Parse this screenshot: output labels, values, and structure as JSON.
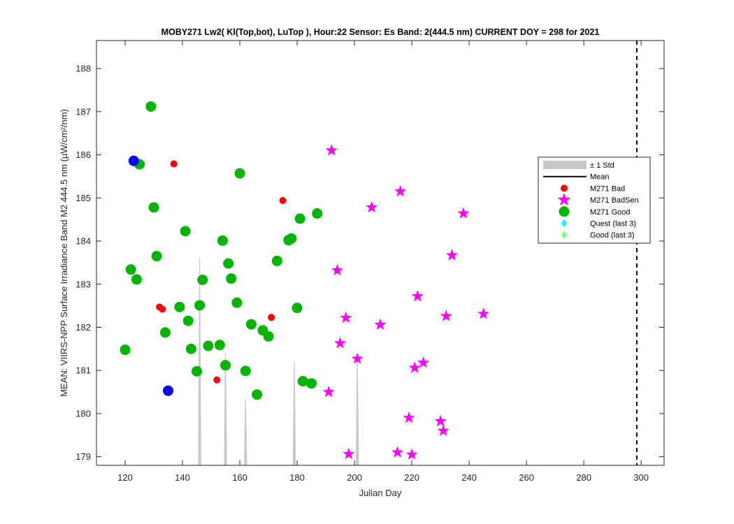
{
  "chart_data": {
    "type": "scatter",
    "title": "MOBY271   Lw2( Kl(Top,bot), LuTop ),   Hour:22 Sensor: Es Band: 2(444.5 nm)   CURRENT DOY = 298 for 2021",
    "xlabel": "Julian Day",
    "ylabel": "MEAN: VIIRS-NPP Surface Irradiance Band M2 444.5 nm (µW/cm²/nm)",
    "xlim": [
      110,
      308
    ],
    "ylim": [
      178.8,
      188.65
    ],
    "xticks": [
      120,
      140,
      160,
      180,
      200,
      220,
      240,
      260,
      280,
      300
    ],
    "yticks": [
      179,
      180,
      181,
      182,
      183,
      184,
      185,
      186,
      187,
      188
    ],
    "grid": false,
    "legend_position": "top-right",
    "current_doy_line": 298.5,
    "std_band": {
      "name": "± 1 Std",
      "color": "#c8c8c8",
      "spikes": [
        {
          "x": 146,
          "top": 183.6
        },
        {
          "x": 155,
          "top": 181.4
        },
        {
          "x": 162,
          "top": 180.35
        },
        {
          "x": 179,
          "top": 181.2
        },
        {
          "x": 201,
          "top": 181.3
        }
      ]
    },
    "series": [
      {
        "name": "M271 Bad",
        "marker": "circle-small",
        "color": "#ff0000",
        "points": [
          {
            "x": 132,
            "y": 182.47
          },
          {
            "x": 133,
            "y": 182.42
          },
          {
            "x": 137,
            "y": 185.79
          },
          {
            "x": 152,
            "y": 180.78
          },
          {
            "x": 171,
            "y": 182.23
          },
          {
            "x": 175,
            "y": 184.94
          }
        ]
      },
      {
        "name": "M271 BadSen",
        "marker": "star",
        "color": "#ff00ff",
        "points": [
          {
            "x": 192,
            "y": 186.1
          },
          {
            "x": 216,
            "y": 185.15
          },
          {
            "x": 206,
            "y": 184.78
          },
          {
            "x": 238,
            "y": 184.64
          },
          {
            "x": 234,
            "y": 183.67
          },
          {
            "x": 194,
            "y": 183.32
          },
          {
            "x": 222,
            "y": 182.72
          },
          {
            "x": 197,
            "y": 182.22
          },
          {
            "x": 232,
            "y": 182.26
          },
          {
            "x": 245,
            "y": 182.31
          },
          {
            "x": 209,
            "y": 182.06
          },
          {
            "x": 195,
            "y": 181.63
          },
          {
            "x": 201,
            "y": 181.27
          },
          {
            "x": 224,
            "y": 181.18
          },
          {
            "x": 221,
            "y": 181.06
          },
          {
            "x": 191,
            "y": 180.5
          },
          {
            "x": 219,
            "y": 179.9
          },
          {
            "x": 230,
            "y": 179.82
          },
          {
            "x": 231,
            "y": 179.6
          },
          {
            "x": 198,
            "y": 179.06
          },
          {
            "x": 215,
            "y": 179.1
          },
          {
            "x": 220,
            "y": 179.05
          }
        ]
      },
      {
        "name": "M271 Good",
        "marker": "circle-large",
        "color": "#00b400",
        "points": [
          {
            "x": 129,
            "y": 187.12
          },
          {
            "x": 125,
            "y": 185.78
          },
          {
            "x": 130,
            "y": 184.78
          },
          {
            "x": 141,
            "y": 184.23
          },
          {
            "x": 160,
            "y": 185.57
          },
          {
            "x": 131,
            "y": 183.65
          },
          {
            "x": 122,
            "y": 183.34
          },
          {
            "x": 124,
            "y": 183.11
          },
          {
            "x": 147,
            "y": 183.1
          },
          {
            "x": 154,
            "y": 184.01
          },
          {
            "x": 156,
            "y": 183.48
          },
          {
            "x": 157,
            "y": 183.13
          },
          {
            "x": 173,
            "y": 183.54
          },
          {
            "x": 177,
            "y": 184.02
          },
          {
            "x": 178,
            "y": 184.06
          },
          {
            "x": 181,
            "y": 184.52
          },
          {
            "x": 187,
            "y": 184.64
          },
          {
            "x": 139,
            "y": 182.47
          },
          {
            "x": 146,
            "y": 182.51
          },
          {
            "x": 159,
            "y": 182.57
          },
          {
            "x": 180,
            "y": 182.45
          },
          {
            "x": 142,
            "y": 182.15
          },
          {
            "x": 164,
            "y": 182.07
          },
          {
            "x": 134,
            "y": 181.88
          },
          {
            "x": 168,
            "y": 181.93
          },
          {
            "x": 170,
            "y": 181.79
          },
          {
            "x": 120,
            "y": 181.48
          },
          {
            "x": 143,
            "y": 181.5
          },
          {
            "x": 149,
            "y": 181.57
          },
          {
            "x": 153,
            "y": 181.59
          },
          {
            "x": 145,
            "y": 180.98
          },
          {
            "x": 155,
            "y": 181.12
          },
          {
            "x": 162,
            "y": 180.99
          },
          {
            "x": 182,
            "y": 180.75
          },
          {
            "x": 185,
            "y": 180.7
          },
          {
            "x": 166,
            "y": 180.44
          }
        ]
      },
      {
        "name": "",
        "marker": "circle-large",
        "color": "#0000ff",
        "points": [
          {
            "x": 123,
            "y": 185.86
          },
          {
            "x": 135,
            "y": 180.53
          }
        ]
      }
    ],
    "legend": [
      {
        "label": "± 1 Std",
        "marker": "band",
        "color": "#c8c8c8"
      },
      {
        "label": "Mean",
        "marker": "line",
        "color": "#000000"
      },
      {
        "label": "M271 Bad",
        "marker": "circle-small",
        "color": "#ff0000"
      },
      {
        "label": "M271 BadSen",
        "marker": "star",
        "color": "#ff00ff"
      },
      {
        "label": "M271 Good",
        "marker": "circle-large",
        "color": "#00b400"
      },
      {
        "label": "Quest (last 3)",
        "marker": "diamond",
        "color": "#00ffff"
      },
      {
        "label": "Good (last 3)",
        "marker": "diamond",
        "color": "#80ff80"
      }
    ]
  }
}
